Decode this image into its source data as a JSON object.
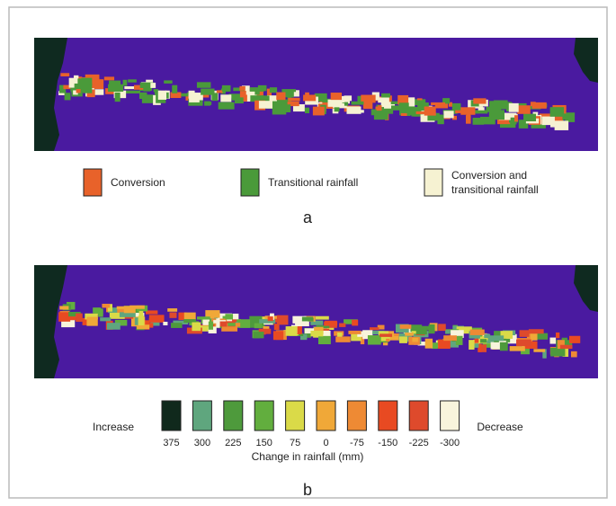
{
  "panel_a": {
    "legend": [
      {
        "label": "Conversion",
        "color": "#e8622a"
      },
      {
        "label": "Transitional rainfall",
        "color": "#4a9a3a"
      },
      {
        "label": "Conversion and transitional rainfall",
        "color": "#f6f2d2"
      }
    ],
    "label": "a"
  },
  "panel_b": {
    "left_label": "Increase",
    "right_label": "Decrease",
    "scale": [
      {
        "value": 375,
        "color": "#10291c"
      },
      {
        "value": 300,
        "color": "#5fa67e"
      },
      {
        "value": 225,
        "color": "#4e9a3c"
      },
      {
        "value": 150,
        "color": "#62ae3e"
      },
      {
        "value": 75,
        "color": "#dada48"
      },
      {
        "value": 0,
        "color": "#f0a838"
      },
      {
        "value": -75,
        "color": "#ee8a34"
      },
      {
        "value": -150,
        "color": "#e84a22"
      },
      {
        "value": -225,
        "color": "#de4a2c"
      },
      {
        "value": -300,
        "color": "#f8f4dc"
      }
    ],
    "axis_title": "Change in rainfall (mm)",
    "label": "b"
  }
}
